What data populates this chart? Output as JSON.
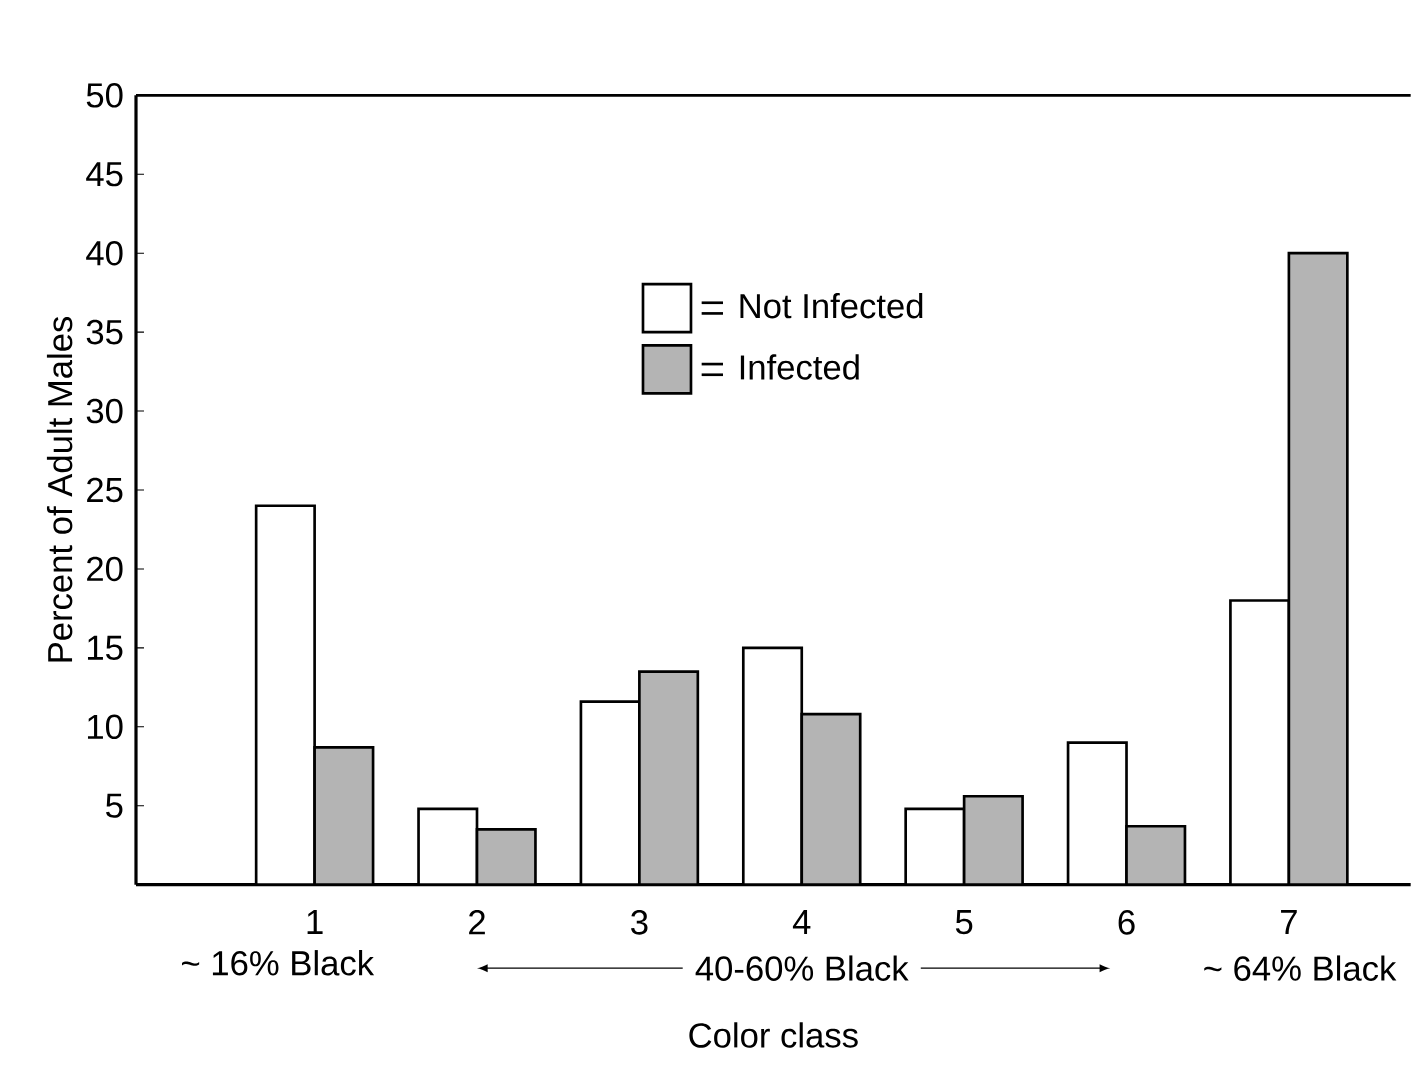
{
  "chart_data": {
    "type": "bar",
    "xlabel": "Color class",
    "ylabel": "Percent of Adult Males",
    "categories": [
      "1",
      "2",
      "3",
      "4",
      "5",
      "6",
      "7"
    ],
    "series": [
      {
        "name": "Not Infected",
        "color": "#ffffff",
        "values": [
          24,
          4.8,
          11.6,
          15,
          4.8,
          9,
          18
        ]
      },
      {
        "name": "Infected",
        "color": "#b4b4b4",
        "values": [
          8.7,
          3.5,
          13.5,
          10.8,
          5.6,
          3.7,
          40
        ]
      }
    ],
    "ylim": [
      0,
      50
    ],
    "yticks": [
      5,
      10,
      15,
      20,
      25,
      30,
      35,
      40,
      45,
      50
    ],
    "legend": "top center",
    "annotations": [
      "~ 16% Black",
      "40-60% Black",
      "~ 64% Black"
    ]
  }
}
